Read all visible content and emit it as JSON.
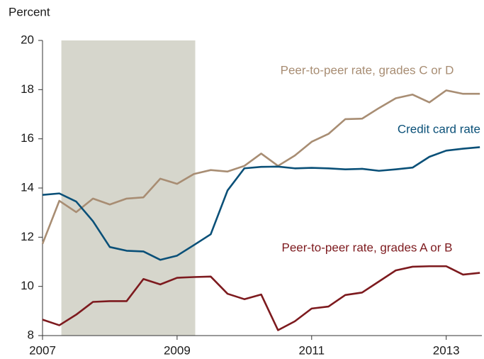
{
  "chart_data": {
    "type": "line",
    "y_axis_label": "Percent",
    "x": [
      2007.0,
      2007.25,
      2007.5,
      2007.75,
      2008.0,
      2008.25,
      2008.5,
      2008.75,
      2009.0,
      2009.25,
      2009.5,
      2009.75,
      2010.0,
      2010.25,
      2010.5,
      2010.75,
      2011.0,
      2011.25,
      2011.5,
      2011.75,
      2012.0,
      2012.25,
      2012.5,
      2012.75,
      2013.0,
      2013.25,
      2013.5
    ],
    "series": [
      {
        "name": "Peer-to-peer rate, grades C or D",
        "color": "#a88d73",
        "values": [
          11.73,
          13.48,
          13.02,
          13.57,
          13.33,
          13.57,
          13.62,
          14.38,
          14.17,
          14.57,
          14.73,
          14.67,
          14.9,
          15.4,
          14.9,
          15.32,
          15.88,
          16.2,
          16.8,
          16.82,
          17.25,
          17.65,
          17.8,
          17.48,
          17.97,
          17.83,
          17.83
        ]
      },
      {
        "name": "Credit card rate",
        "color": "#0a5078",
        "values": [
          13.72,
          13.78,
          13.45,
          12.65,
          11.6,
          11.45,
          11.42,
          11.08,
          11.25,
          11.68,
          12.12,
          13.9,
          14.8,
          14.86,
          14.87,
          14.8,
          14.82,
          14.8,
          14.76,
          14.78,
          14.7,
          14.76,
          14.83,
          15.27,
          15.52,
          15.6,
          15.66
        ]
      },
      {
        "name": "Peer-to-peer rate, grades A or B",
        "color": "#7d1a1e",
        "values": [
          8.65,
          8.42,
          8.85,
          9.37,
          9.4,
          9.4,
          10.3,
          10.08,
          10.35,
          10.38,
          10.4,
          9.7,
          9.48,
          9.67,
          8.22,
          8.58,
          9.1,
          9.18,
          9.65,
          9.75,
          10.2,
          10.65,
          10.8,
          10.82,
          10.82,
          10.48,
          10.55
        ]
      }
    ],
    "shaded_region": {
      "x": [
        2007.28,
        2009.27
      ],
      "color": "#d6d6cc"
    },
    "xlim": [
      2007,
      2013.53
    ],
    "xticks": [
      2007,
      2009,
      2011,
      2013
    ],
    "ylim": [
      8,
      20
    ],
    "yticks": [
      8,
      10,
      12,
      14,
      16,
      18,
      20
    ]
  }
}
